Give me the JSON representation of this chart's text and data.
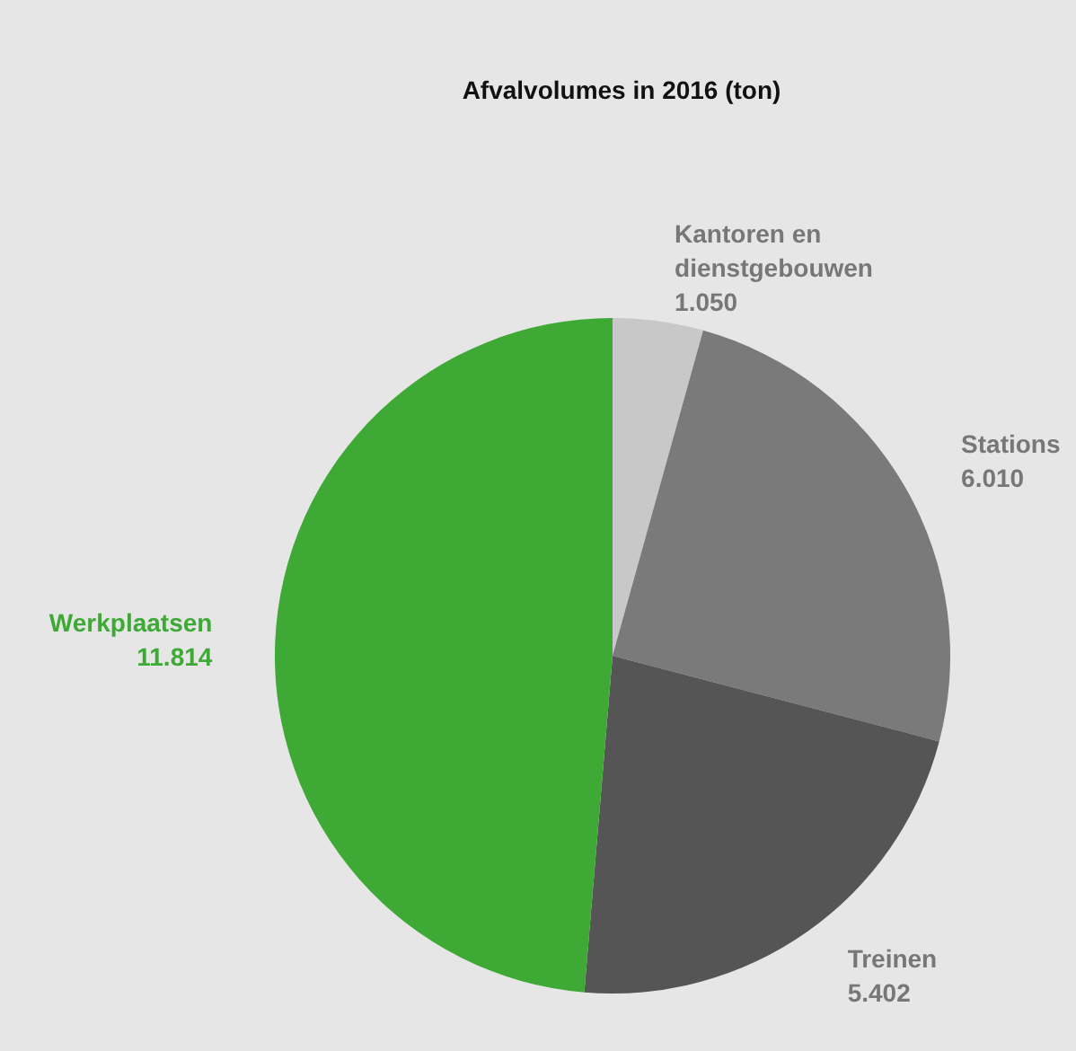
{
  "chart_data": {
    "type": "pie",
    "title": "Afvalvolumes in 2016 (ton)",
    "categories": [
      "Kantoren en dienstgebouwen",
      "Stations",
      "Treinen",
      "Werkplaatsen"
    ],
    "values": [
      1050,
      6010,
      5402,
      11814
    ],
    "value_labels": [
      "1.050",
      "6.010",
      "5.402",
      "11.814"
    ],
    "colors": [
      "#c8c8c8",
      "#7a7a7a",
      "#555555",
      "#3eaa35"
    ],
    "legend": false
  }
}
